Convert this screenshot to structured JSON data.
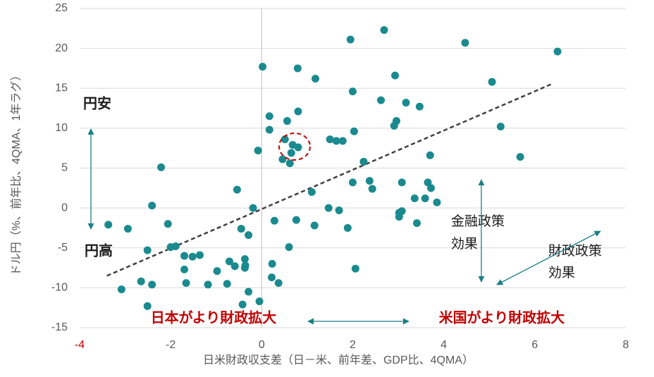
{
  "chart_data": {
    "type": "scatter",
    "x_label": "日米財政収支差（日－米、前年差、GDP比、4QMA）",
    "y_label": "ドル円（%、前年比、4QMA、1年ラグ）",
    "xlim": [
      -4,
      8
    ],
    "xticks": [
      -4,
      -2,
      0,
      2,
      4,
      6,
      8
    ],
    "first_xtick_color": "#c00000",
    "ylim": [
      -15,
      25
    ],
    "yticks": [
      -15,
      -10,
      -5,
      0,
      5,
      10,
      15,
      20,
      25
    ],
    "grid": true,
    "color": "#1a8a8f",
    "x": [
      2.69,
      1.95,
      4.47,
      6.5,
      0.02,
      0.79,
      1.18,
      2.93,
      5.06,
      2.0,
      2.62,
      3.17,
      3.47,
      0.8,
      0.17,
      0.56,
      2.96,
      2.91,
      5.25,
      0.17,
      2.03,
      0.51,
      1.5,
      1.64,
      1.78,
      0.68,
      0.8,
      -0.08,
      0.65,
      3.7,
      5.68,
      0.46,
      0.62,
      2.24,
      -2.21,
      2.0,
      2.37,
      3.08,
      3.65,
      3.72,
      2.43,
      -0.54,
      1.1,
      3.36,
      3.59,
      3.85,
      -2.41,
      -0.19,
      1.47,
      1.7,
      3.08,
      3.02,
      3.02,
      0.28,
      0.76,
      -3.37,
      -2.06,
      1.16,
      3.41,
      -2.94,
      -0.45,
      1.89,
      -0.29,
      -2.0,
      -1.89,
      0.6,
      -2.51,
      -1.7,
      -1.52,
      -1.36,
      -0.37,
      -0.71,
      0.23,
      -0.36,
      -0.59,
      -0.37,
      -1.7,
      -0.98,
      2.06,
      0.22,
      -2.65,
      -1.66,
      0.37,
      -2.41,
      -0.76,
      -1.18,
      -3.08,
      -0.29,
      -0.05,
      -0.42,
      -2.51
    ],
    "values": [
      22.3,
      21.1,
      20.7,
      19.6,
      17.7,
      17.5,
      16.2,
      16.6,
      15.8,
      14.6,
      13.5,
      13.2,
      12.7,
      12.1,
      11.5,
      10.9,
      10.9,
      10.3,
      10.2,
      9.8,
      9.6,
      8.6,
      8.6,
      8.4,
      8.4,
      7.9,
      7.6,
      7.2,
      6.9,
      6.6,
      6.4,
      6.1,
      5.6,
      5.8,
      5.1,
      3.2,
      3.4,
      3.2,
      3.2,
      2.5,
      2.4,
      2.3,
      2.0,
      1.2,
      1.2,
      0.7,
      0.3,
      0.0,
      0.0,
      -0.3,
      -0.4,
      -0.6,
      -1.1,
      -1.6,
      -1.5,
      -2.1,
      -2.0,
      -2.2,
      -1.9,
      -2.6,
      -2.6,
      -2.5,
      -3.4,
      -4.9,
      -4.8,
      -4.9,
      -5.3,
      -6.0,
      -6.1,
      -5.9,
      -6.4,
      -6.7,
      -7.0,
      -7.2,
      -7.3,
      -7.5,
      -7.7,
      -7.9,
      -7.6,
      -8.7,
      -9.2,
      -9.4,
      -9.4,
      -9.6,
      -9.5,
      -9.6,
      -10.2,
      -10.5,
      -11.7,
      -12.1,
      -12.3
    ],
    "trendline": {
      "x": [
        -3.4,
        6.4
      ],
      "y": [
        -8.5,
        15.6
      ],
      "color": "#404040"
    },
    "annotations": {
      "yen_weak": "円安",
      "yen_strong": "円高",
      "monetary": [
        "金融政策",
        "効果"
      ],
      "fiscal": [
        "財政政策",
        "効果"
      ],
      "japan_fiscal": "日本がより財政拡大",
      "us_fiscal": "米国がより財政拡大"
    }
  }
}
